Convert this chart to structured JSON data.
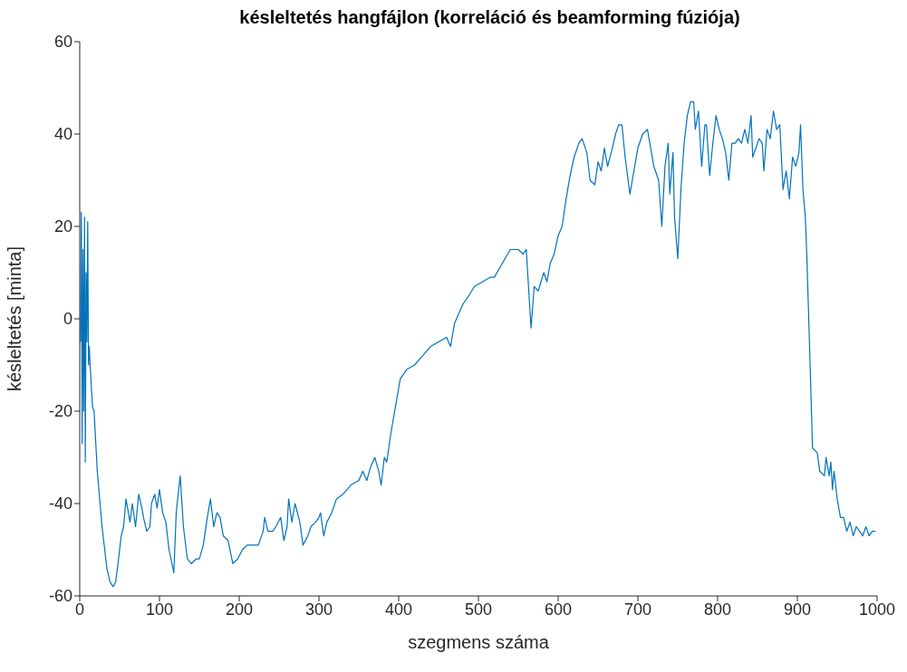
{
  "chart_data": {
    "type": "line",
    "title": "késleltetés hangfájlon (korreláció és beamforming fúziója)",
    "xlabel": "szegmens száma",
    "ylabel": "késleltetés [minta]",
    "xlim": [
      0,
      1000
    ],
    "xticks": [
      0,
      100,
      200,
      300,
      400,
      500,
      600,
      700,
      800,
      900,
      1000
    ],
    "ylim": [
      -60,
      60
    ],
    "yticks": [
      -60,
      -40,
      -20,
      0,
      20,
      40,
      60
    ],
    "grid": false,
    "legend": false,
    "marker": "none",
    "line_style": "solid",
    "series": [
      {
        "color": "#0072bd",
        "x": [
          1,
          2,
          3,
          4,
          5,
          6,
          7,
          8,
          9,
          10,
          11,
          12,
          13,
          16,
          18,
          22,
          28,
          34,
          38,
          42,
          45,
          48,
          52,
          55,
          58,
          61,
          63,
          66,
          70,
          74,
          78,
          80,
          84,
          88,
          90,
          94,
          97,
          100,
          104,
          108,
          112,
          118,
          121,
          126,
          130,
          135,
          140,
          146,
          150,
          155,
          160,
          164,
          168,
          172,
          176,
          180,
          186,
          192,
          198,
          204,
          210,
          218,
          224,
          230,
          232,
          236,
          242,
          246,
          252,
          256,
          260,
          262,
          266,
          270,
          276,
          280,
          286,
          290,
          296,
          300,
          302,
          306,
          310,
          316,
          322,
          330,
          340,
          350,
          355,
          360,
          365,
          370,
          375,
          378,
          382,
          385,
          390,
          393,
          398,
          402,
          410,
          420,
          425,
          430,
          440,
          450,
          460,
          465,
          470,
          475,
          480,
          488,
          495,
          505,
          515,
          520,
          530,
          540,
          550,
          556,
          560,
          566,
          570,
          575,
          582,
          586,
          590,
          595,
          600,
          605,
          610,
          615,
          620,
          626,
          630,
          636,
          640,
          646,
          650,
          654,
          658,
          662,
          668,
          672,
          676,
          680,
          684,
          690,
          694,
          700,
          706,
          712,
          716,
          720,
          726,
          730,
          734,
          738,
          740,
          744,
          746,
          750,
          754,
          758,
          762,
          766,
          770,
          772,
          776,
          780,
          784,
          786,
          790,
          794,
          798,
          802,
          806,
          810,
          814,
          818,
          822,
          826,
          830,
          834,
          838,
          842,
          844,
          848,
          852,
          856,
          858,
          862,
          866,
          870,
          874,
          878,
          882,
          886,
          890,
          894,
          898,
          902,
          904,
          907,
          910,
          912,
          916,
          919,
          925,
          928,
          934,
          936,
          940,
          942,
          944,
          946,
          950,
          954,
          958,
          962,
          966,
          970,
          974,
          978,
          982,
          986,
          990,
          994,
          998
        ],
        "values": [
          -5,
          23,
          -27,
          15,
          -20,
          22,
          -31,
          10,
          -5,
          21,
          -10,
          -6,
          -10,
          -19,
          -20,
          -33,
          -45,
          -54,
          -57,
          -58,
          -57,
          -53,
          -47,
          -45,
          -39,
          -42,
          -44,
          -40,
          -45,
          -38,
          -41,
          -43,
          -46,
          -45,
          -40,
          -38,
          -41,
          -37,
          -42,
          -44,
          -50,
          -55,
          -42,
          -34,
          -45,
          -52,
          -53,
          -52,
          -52,
          -49,
          -43,
          -39,
          -45,
          -42,
          -43,
          -47,
          -48,
          -53,
          -52,
          -50,
          -49,
          -49,
          -49,
          -46,
          -43,
          -46,
          -46,
          -45,
          -43,
          -48,
          -45,
          -39,
          -44,
          -40,
          -44,
          -49,
          -47,
          -45,
          -44,
          -43,
          -42,
          -47,
          -44,
          -42,
          -39,
          -38,
          -36,
          -35,
          -33,
          -35,
          -32,
          -30,
          -33,
          -36,
          -30,
          -31,
          -25,
          -22,
          -17,
          -13,
          -11,
          -10,
          -9,
          -8,
          -6,
          -5,
          -4,
          -6,
          -1,
          1,
          3,
          5,
          7,
          8,
          9,
          9,
          12,
          15,
          15,
          14,
          15,
          -2,
          7,
          6,
          10,
          8,
          12,
          14,
          18,
          20,
          26,
          31,
          35,
          38,
          39,
          36,
          30,
          29,
          34,
          32,
          37,
          33,
          37,
          40,
          42,
          42,
          35,
          27,
          31,
          37,
          40,
          41,
          37,
          33,
          30,
          20,
          33,
          38,
          27,
          36,
          22,
          13,
          28,
          38,
          44,
          47,
          47,
          41,
          45,
          33,
          42,
          42,
          31,
          38,
          44,
          41,
          39,
          36,
          30,
          38,
          38,
          39,
          38,
          41,
          38,
          44,
          35,
          37,
          39,
          38,
          32,
          41,
          39,
          45,
          41,
          42,
          28,
          32,
          26,
          35,
          33,
          36,
          42,
          28,
          22,
          13,
          -10,
          -28,
          -29,
          -33,
          -34,
          -30,
          -34,
          -31,
          -37,
          -33,
          -39,
          -43,
          -43,
          -46,
          -44,
          -47,
          -45,
          -46,
          -47,
          -45,
          -47,
          -46,
          -46
        ]
      }
    ]
  }
}
